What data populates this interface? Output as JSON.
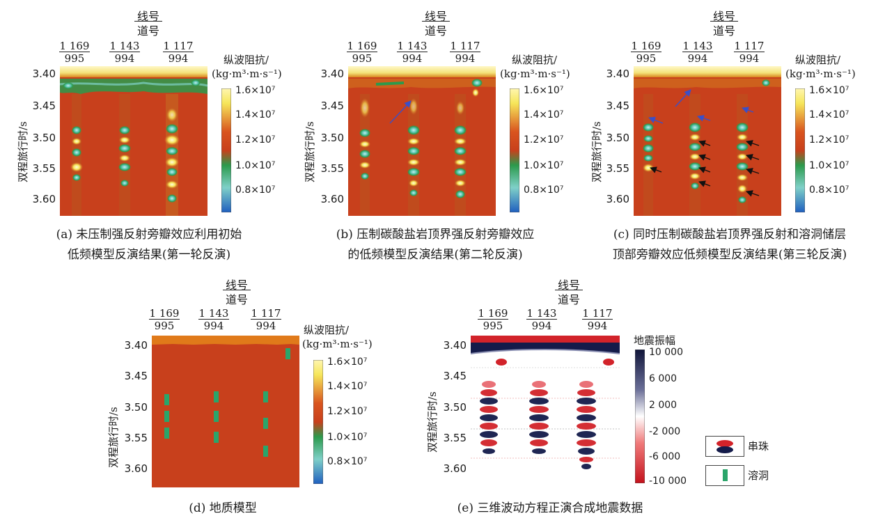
{
  "figure": {
    "line_label": "线号",
    "trace_label": "道号",
    "y_axis_label": "双程旅行时/s",
    "traces": [
      {
        "line": "1 169",
        "trace": "995"
      },
      {
        "line": "1 143",
        "trace": "994"
      },
      {
        "line": "1 117",
        "trace": "994"
      }
    ],
    "y_ticks": [
      "3.40",
      "3.45",
      "3.50",
      "3.55",
      "3.60"
    ],
    "impedance_colorbar": {
      "title_line1": "纵波阻抗/",
      "title_line2": "(kg·m³·m·s⁻¹)",
      "ticks": [
        "1.6×10⁷",
        "1.4×10⁷",
        "1.2×10⁷",
        "1.0×10⁷",
        "0.8×10⁷"
      ]
    },
    "seismic_colorbar": {
      "title": "地震振幅",
      "ticks": [
        "10 000",
        "6 000",
        "2 000",
        "-2 000",
        "-6 000",
        "-10 000"
      ]
    },
    "legend": {
      "bead": "串珠",
      "cave": "溶洞"
    },
    "colors": {
      "background_red": "#c8401c",
      "bright_yellow": "#f6e65a",
      "green": "#2c9a4c",
      "cyan": "#8fd8d0",
      "blue_arrow": "#3a4fc8",
      "seismic_red": "#d2232a",
      "seismic_navy": "#141b4a"
    }
  },
  "panels": {
    "a": {
      "caption_line1": "(a) 未压制强反射旁瓣效应利用初始",
      "caption_line2": "低频模型反演结果(第一轮反演)"
    },
    "b": {
      "caption_line1": "(b) 压制碳酸盐岩顶界强反射旁瓣效应",
      "caption_line2": "的低频模型反演结果(第二轮反演)"
    },
    "c": {
      "caption_line1": "(c) 同时压制碳酸盐岩顶界强反射和溶洞储层",
      "caption_line2": "顶部旁瓣效应低频模型反演结果(第三轮反演)"
    },
    "d": {
      "caption_line1": "(d) 地质模型"
    },
    "e": {
      "caption_line1": "(e) 三维波动方程正演合成地震数据"
    }
  }
}
